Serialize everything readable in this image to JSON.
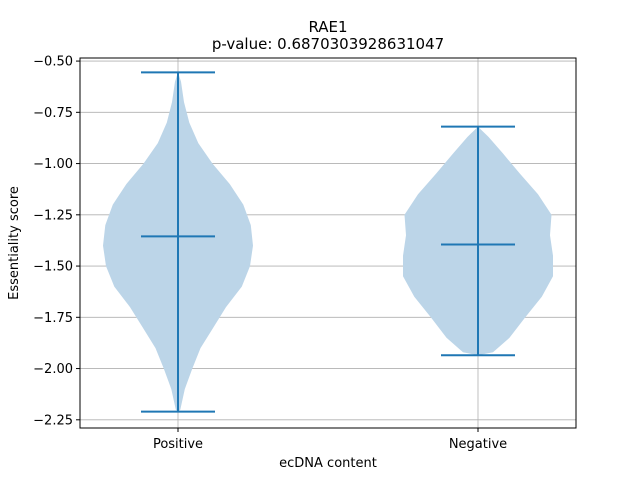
{
  "chart_data": {
    "type": "violin",
    "title": "RAE1",
    "subtitle": "p-value: 0.6870303928631047",
    "xlabel": "ecDNA content",
    "ylabel": "Essentiality score",
    "categories": [
      "Positive",
      "Negative"
    ],
    "ylim": [
      -2.29,
      -0.485
    ],
    "yticks": [
      -2.25,
      -2.0,
      -1.75,
      -1.5,
      -1.25,
      -1.0,
      -0.75,
      -0.5
    ],
    "ytick_labels": [
      "−2.25",
      "−2.00",
      "−1.75",
      "−1.50",
      "−1.25",
      "−1.00",
      "−0.75",
      "−0.50"
    ],
    "grid": true,
    "colors": {
      "violin_fill": "#bcd5e8",
      "stat_line": "#1f77b4",
      "grid": "#b0b0b0",
      "axis": "#000000"
    },
    "violins": [
      {
        "category": "Positive",
        "min": -2.21,
        "max": -0.555,
        "median": -1.355,
        "density_profile": [
          [
            -2.21,
            0.0
          ],
          [
            -2.2,
            0.03
          ],
          [
            -2.1,
            0.09
          ],
          [
            -2.0,
            0.19
          ],
          [
            -1.9,
            0.3
          ],
          [
            -1.8,
            0.47
          ],
          [
            -1.7,
            0.64
          ],
          [
            -1.6,
            0.85
          ],
          [
            -1.5,
            0.96
          ],
          [
            -1.4,
            1.0
          ],
          [
            -1.3,
            0.97
          ],
          [
            -1.2,
            0.87
          ],
          [
            -1.1,
            0.69
          ],
          [
            -1.0,
            0.46
          ],
          [
            -0.9,
            0.27
          ],
          [
            -0.8,
            0.15
          ],
          [
            -0.7,
            0.08
          ],
          [
            -0.6,
            0.04
          ],
          [
            -0.555,
            0.0
          ]
        ]
      },
      {
        "category": "Negative",
        "min": -1.935,
        "max": -0.82,
        "median": -1.395,
        "density_profile": [
          [
            -1.935,
            0.0
          ],
          [
            -1.92,
            0.2
          ],
          [
            -1.85,
            0.42
          ],
          [
            -1.75,
            0.63
          ],
          [
            -1.65,
            0.85
          ],
          [
            -1.55,
            1.0
          ],
          [
            -1.45,
            1.0
          ],
          [
            -1.35,
            0.96
          ],
          [
            -1.25,
            0.98
          ],
          [
            -1.15,
            0.8
          ],
          [
            -1.05,
            0.56
          ],
          [
            -0.95,
            0.33
          ],
          [
            -0.87,
            0.14
          ],
          [
            -0.82,
            0.0
          ]
        ]
      }
    ]
  }
}
